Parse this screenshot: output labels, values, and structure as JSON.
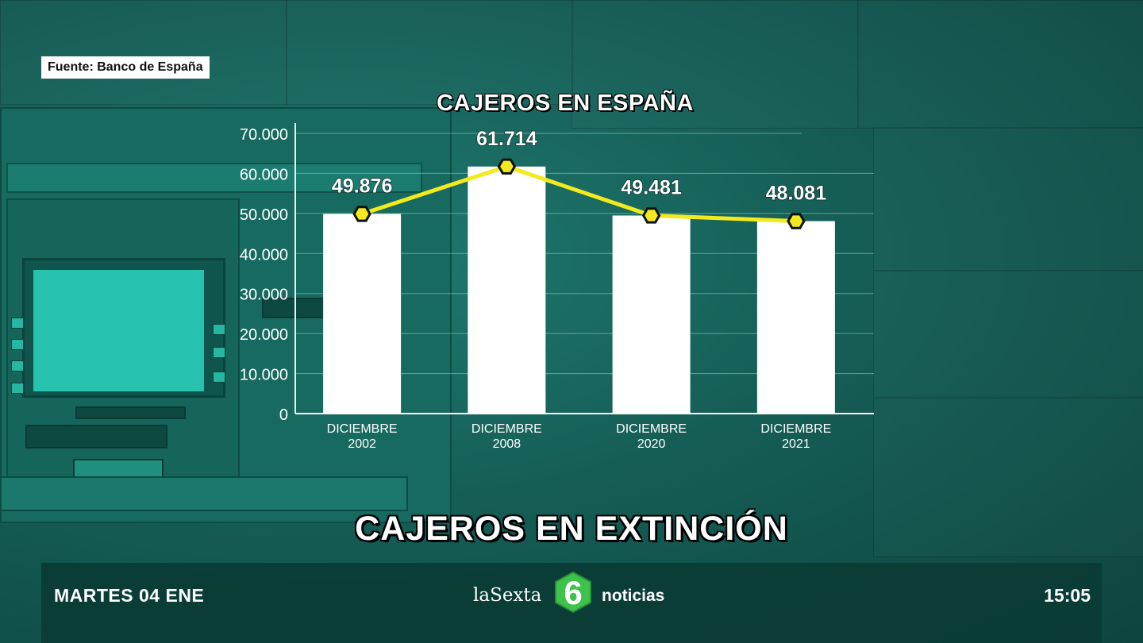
{
  "source": "Fuente: Banco de España",
  "headline": "CAJEROS EN EXTINCIÓN",
  "ticker": {
    "date": "MARTES 04 ENE",
    "time": "15:05",
    "brand_name": "laSexta",
    "brand_logo_digit": "6",
    "brand_section": "noticias"
  },
  "colors": {
    "bar": "#ffffff",
    "line": "#f2ea1e",
    "marker": "#f2ea1e",
    "grid": "#9fd3cb",
    "background": "#176a5f"
  },
  "chart_data": {
    "type": "bar",
    "title": "CAJEROS EN ESPAÑA",
    "categories": [
      [
        "DICIEMBRE",
        "2002"
      ],
      [
        "DICIEMBRE",
        "2008"
      ],
      [
        "DICIEMBRE",
        "2020"
      ],
      [
        "DICIEMBRE",
        "2021"
      ]
    ],
    "values": [
      49876,
      61714,
      49481,
      48081
    ],
    "value_labels": [
      "49.876",
      "61.714",
      "49.481",
      "48.081"
    ],
    "overlay_line": true,
    "yticks": [
      0,
      10000,
      20000,
      30000,
      40000,
      50000,
      60000,
      70000
    ],
    "ytick_labels": [
      "0",
      "10.000",
      "20.000",
      "30.000",
      "40.000",
      "50.000",
      "60.000",
      "70.000"
    ],
    "ylim": [
      0,
      70000
    ],
    "grid": true
  }
}
